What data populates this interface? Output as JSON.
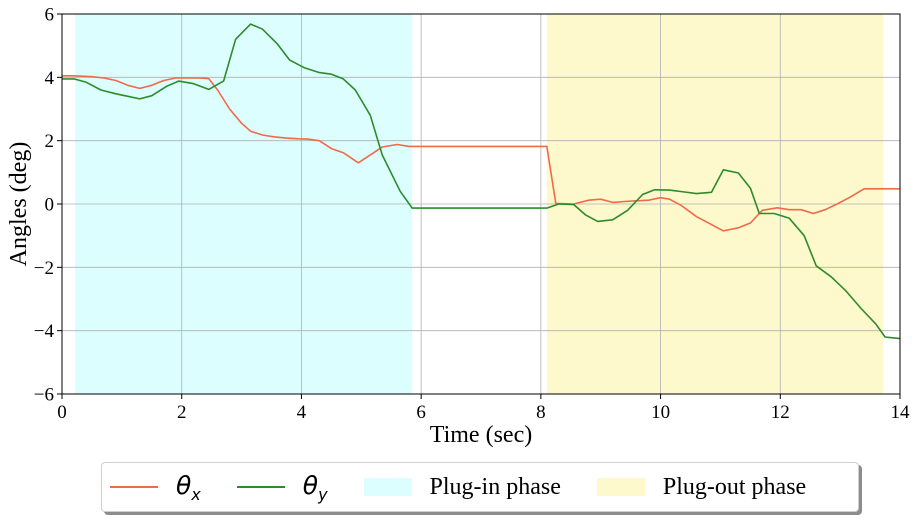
{
  "chart_data": {
    "type": "line",
    "title": "",
    "xlabel": "Time (sec)",
    "ylabel": "Angles (deg)",
    "xlim": [
      0,
      14
    ],
    "ylim": [
      -6,
      6
    ],
    "xticks": [
      0,
      2,
      4,
      6,
      8,
      10,
      12,
      14
    ],
    "yticks": [
      -6,
      -4,
      -2,
      0,
      2,
      4,
      6
    ],
    "grid": true,
    "legend_position": "bottom-outside",
    "phases": [
      {
        "name": "Plug-in phase",
        "x_start": 0.22,
        "x_end": 5.85,
        "color": "#dcfefe"
      },
      {
        "name": "Plug-out phase",
        "x_start": 8.1,
        "x_end": 13.72,
        "color": "#fdf9cc"
      }
    ],
    "series": [
      {
        "name": "θx",
        "symbol": "θ",
        "subscript": "x",
        "color": "#f06a4a",
        "points": [
          [
            0.0,
            4.05
          ],
          [
            0.2,
            4.05
          ],
          [
            0.5,
            4.02
          ],
          [
            0.7,
            3.98
          ],
          [
            0.9,
            3.9
          ],
          [
            1.1,
            3.75
          ],
          [
            1.3,
            3.65
          ],
          [
            1.5,
            3.75
          ],
          [
            1.7,
            3.9
          ],
          [
            1.9,
            3.98
          ],
          [
            2.1,
            3.98
          ],
          [
            2.3,
            3.98
          ],
          [
            2.45,
            3.96
          ],
          [
            2.6,
            3.6
          ],
          [
            2.8,
            3.0
          ],
          [
            3.0,
            2.55
          ],
          [
            3.15,
            2.3
          ],
          [
            3.35,
            2.18
          ],
          [
            3.55,
            2.12
          ],
          [
            3.75,
            2.08
          ],
          [
            3.95,
            2.06
          ],
          [
            4.1,
            2.05
          ],
          [
            4.3,
            2.0
          ],
          [
            4.5,
            1.75
          ],
          [
            4.7,
            1.62
          ],
          [
            4.95,
            1.3
          ],
          [
            5.15,
            1.55
          ],
          [
            5.35,
            1.8
          ],
          [
            5.6,
            1.88
          ],
          [
            5.8,
            1.82
          ],
          [
            6.0,
            1.82
          ],
          [
            6.5,
            1.82
          ],
          [
            7.0,
            1.82
          ],
          [
            7.5,
            1.82
          ],
          [
            8.0,
            1.82
          ],
          [
            8.1,
            1.82
          ],
          [
            8.25,
            0.02
          ],
          [
            8.55,
            0.0
          ],
          [
            8.8,
            0.12
          ],
          [
            9.0,
            0.15
          ],
          [
            9.2,
            0.05
          ],
          [
            9.4,
            0.08
          ],
          [
            9.6,
            0.1
          ],
          [
            9.8,
            0.12
          ],
          [
            10.0,
            0.2
          ],
          [
            10.15,
            0.15
          ],
          [
            10.35,
            -0.05
          ],
          [
            10.6,
            -0.4
          ],
          [
            10.85,
            -0.65
          ],
          [
            11.05,
            -0.85
          ],
          [
            11.3,
            -0.75
          ],
          [
            11.5,
            -0.6
          ],
          [
            11.7,
            -0.2
          ],
          [
            11.95,
            -0.12
          ],
          [
            12.15,
            -0.18
          ],
          [
            12.35,
            -0.18
          ],
          [
            12.55,
            -0.3
          ],
          [
            12.75,
            -0.18
          ],
          [
            12.95,
            0.0
          ],
          [
            13.15,
            0.2
          ],
          [
            13.4,
            0.48
          ],
          [
            13.7,
            0.48
          ],
          [
            14.0,
            0.48
          ]
        ]
      },
      {
        "name": "θy",
        "symbol": "θ",
        "subscript": "y",
        "color": "#2c8c2c",
        "points": [
          [
            0.0,
            3.95
          ],
          [
            0.2,
            3.95
          ],
          [
            0.4,
            3.85
          ],
          [
            0.65,
            3.6
          ],
          [
            0.9,
            3.48
          ],
          [
            1.1,
            3.4
          ],
          [
            1.3,
            3.32
          ],
          [
            1.5,
            3.42
          ],
          [
            1.75,
            3.72
          ],
          [
            1.95,
            3.88
          ],
          [
            2.2,
            3.8
          ],
          [
            2.45,
            3.62
          ],
          [
            2.7,
            3.88
          ],
          [
            2.9,
            5.2
          ],
          [
            3.15,
            5.68
          ],
          [
            3.35,
            5.52
          ],
          [
            3.6,
            5.05
          ],
          [
            3.8,
            4.55
          ],
          [
            4.05,
            4.3
          ],
          [
            4.3,
            4.15
          ],
          [
            4.5,
            4.1
          ],
          [
            4.7,
            3.95
          ],
          [
            4.9,
            3.6
          ],
          [
            5.15,
            2.8
          ],
          [
            5.35,
            1.55
          ],
          [
            5.65,
            0.4
          ],
          [
            5.85,
            -0.13
          ],
          [
            6.5,
            -0.13
          ],
          [
            7.0,
            -0.13
          ],
          [
            7.5,
            -0.13
          ],
          [
            8.1,
            -0.13
          ],
          [
            8.3,
            0.0
          ],
          [
            8.55,
            -0.02
          ],
          [
            8.75,
            -0.35
          ],
          [
            8.95,
            -0.55
          ],
          [
            9.2,
            -0.5
          ],
          [
            9.45,
            -0.2
          ],
          [
            9.7,
            0.3
          ],
          [
            9.9,
            0.45
          ],
          [
            10.15,
            0.44
          ],
          [
            10.4,
            0.38
          ],
          [
            10.6,
            0.33
          ],
          [
            10.85,
            0.37
          ],
          [
            11.05,
            1.08
          ],
          [
            11.3,
            0.98
          ],
          [
            11.5,
            0.5
          ],
          [
            11.65,
            -0.3
          ],
          [
            11.9,
            -0.3
          ],
          [
            12.15,
            -0.45
          ],
          [
            12.4,
            -1.0
          ],
          [
            12.6,
            -1.95
          ],
          [
            12.85,
            -2.3
          ],
          [
            13.1,
            -2.75
          ],
          [
            13.35,
            -3.3
          ],
          [
            13.6,
            -3.8
          ],
          [
            13.75,
            -4.2
          ],
          [
            14.0,
            -4.25
          ]
        ]
      }
    ]
  }
}
